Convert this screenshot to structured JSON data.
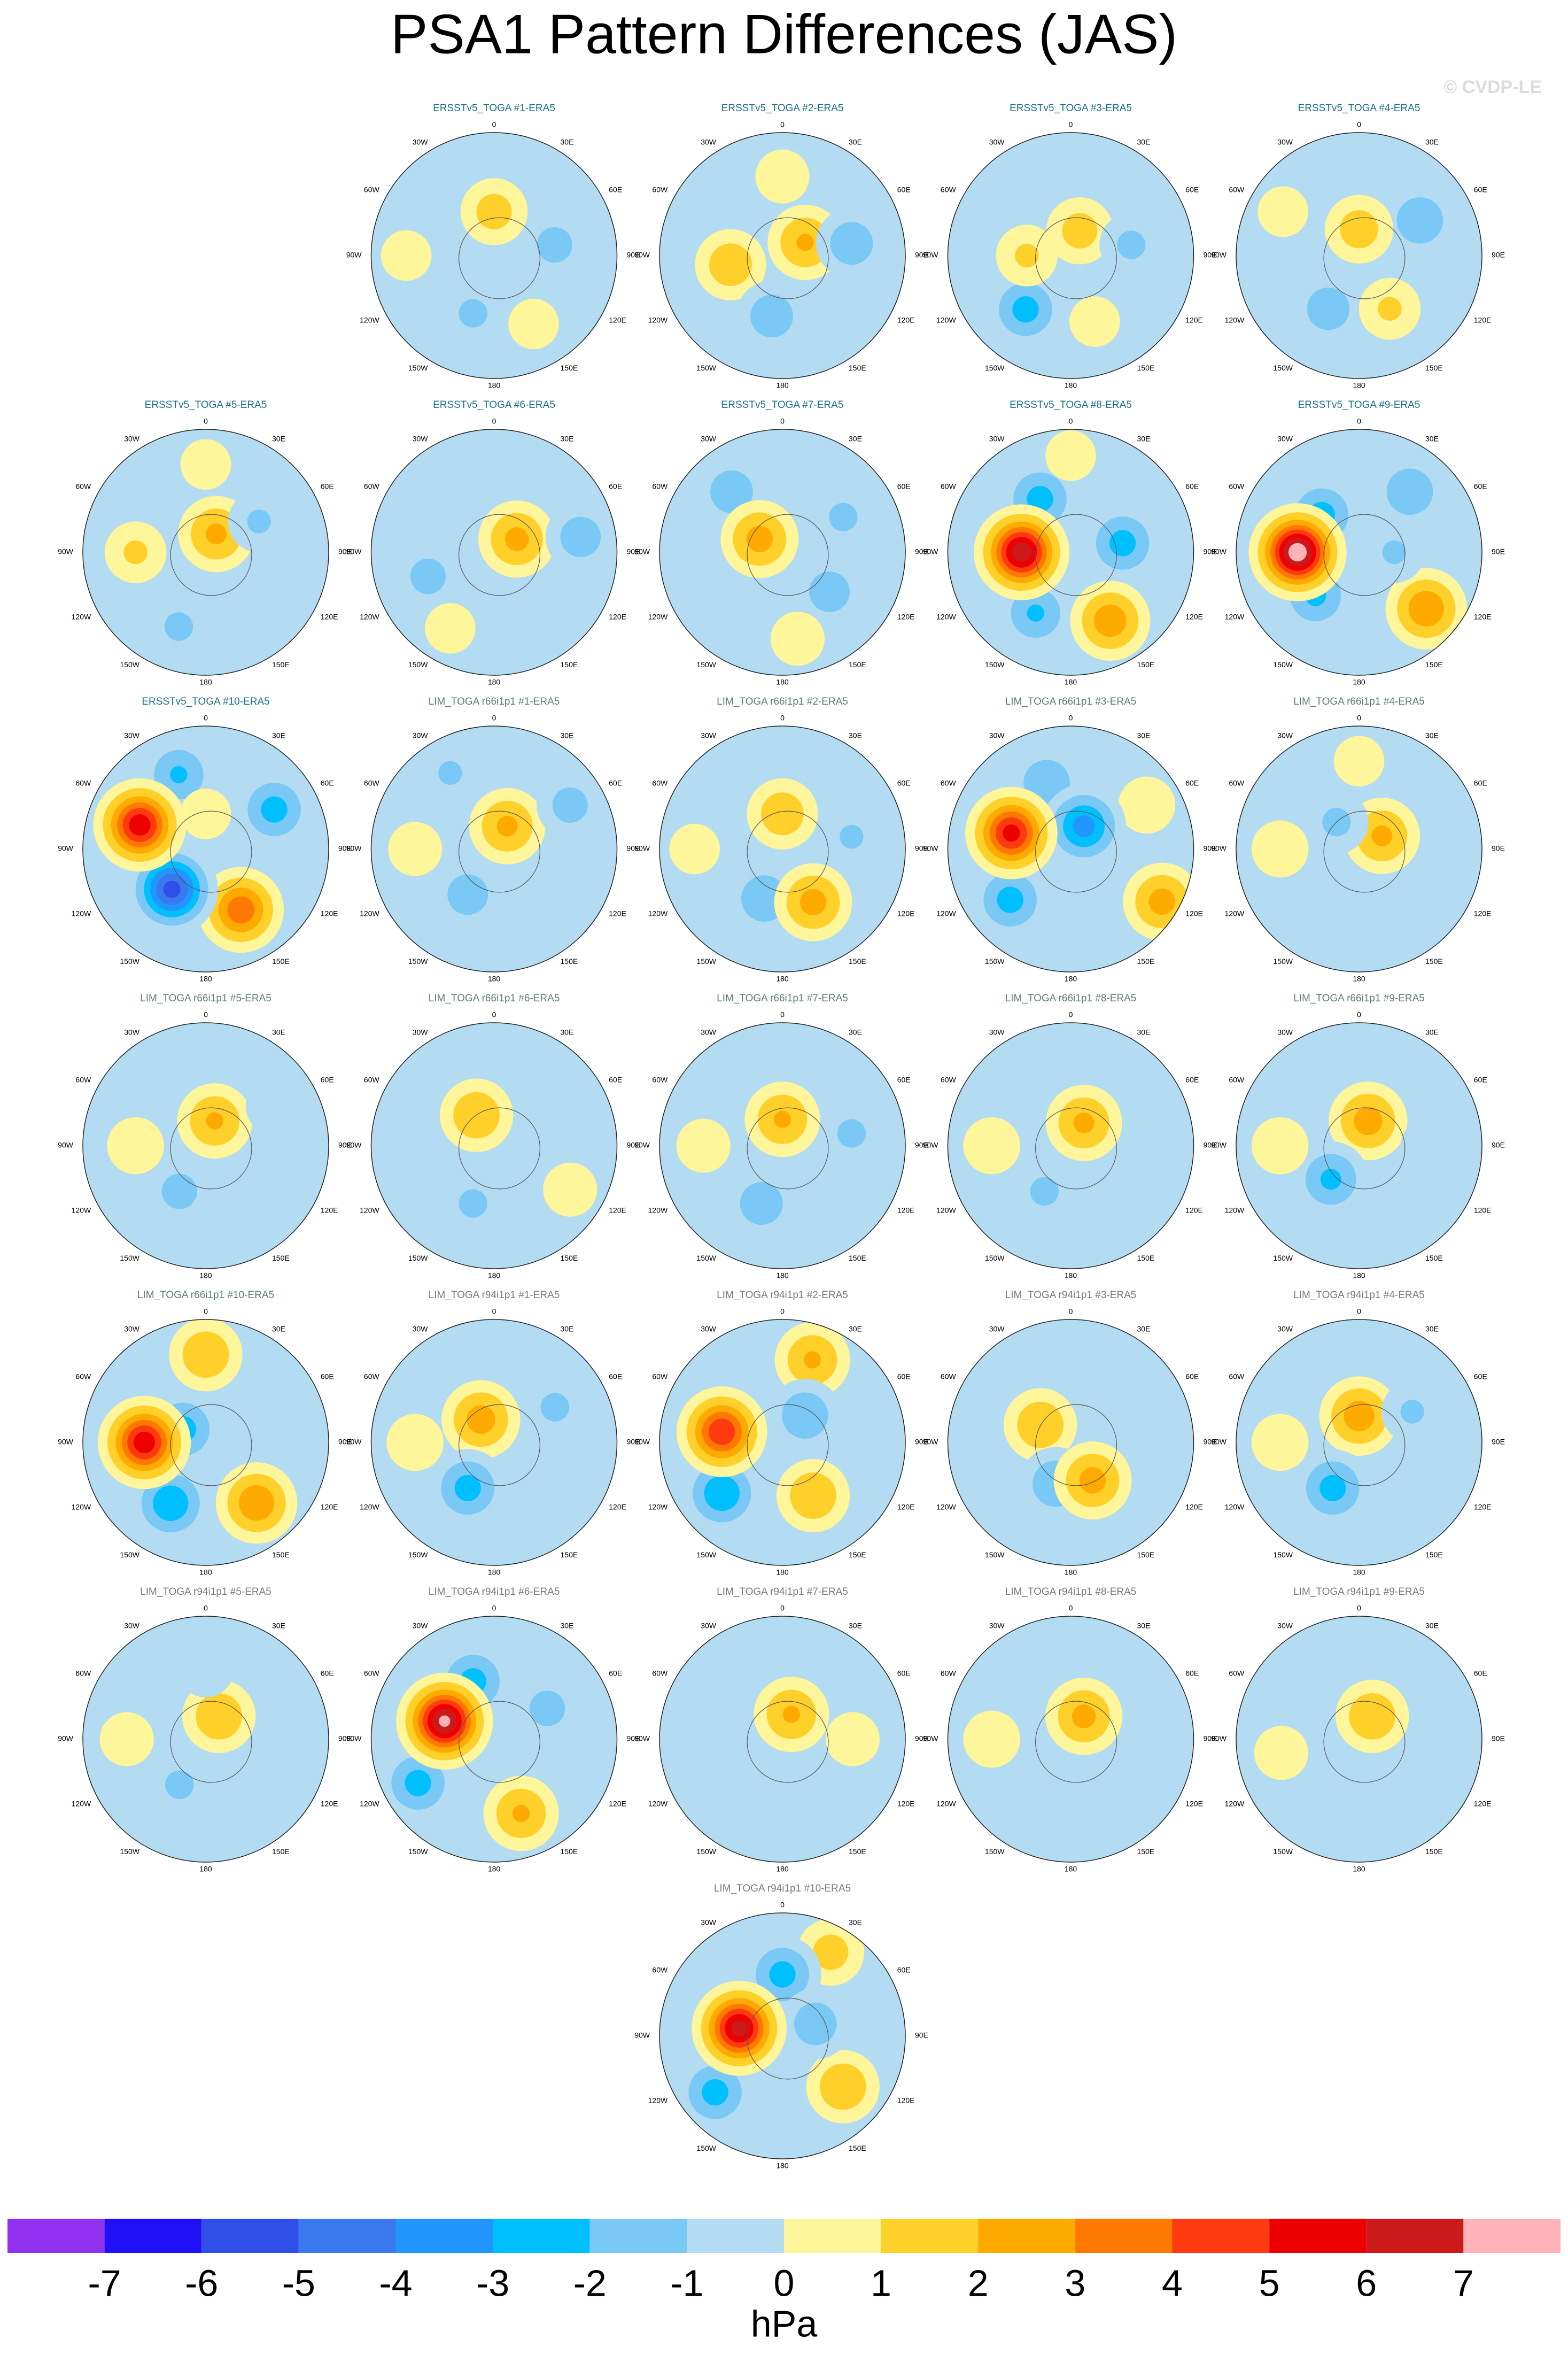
{
  "title": "PSA1 Pattern Differences (JAS)",
  "watermark": "© CVDP-LE",
  "lon_labels": [
    0,
    {
      "value": 30,
      "label": "30E"
    },
    {
      "value": 60,
      "label": "60E"
    },
    {
      "value": 90,
      "label": "90E"
    },
    {
      "value": 120,
      "label": "120E"
    },
    {
      "value": 150,
      "label": "150E"
    },
    180,
    {
      "value": -150,
      "label": "150W"
    },
    {
      "value": -120,
      "label": "120W"
    },
    {
      "value": -90,
      "label": "90W"
    },
    {
      "value": -60,
      "label": "60W"
    },
    {
      "value": -30,
      "label": "30W"
    }
  ],
  "colorbar": {
    "levels": [
      -7,
      -6,
      -5,
      -4,
      -3,
      -2,
      -1,
      0,
      1,
      2,
      3,
      4,
      5,
      6,
      7
    ],
    "colors": [
      "#9131f0",
      "#1f10f5",
      "#2f4fe8",
      "#3a78f0",
      "#2196ff",
      "#00bfff",
      "#7ac8f5",
      "#b3dcf2",
      "#fff59a",
      "#ffd02a",
      "#ffaa00",
      "#ff7800",
      "#ff3a10",
      "#ee0000",
      "#cc1a1a",
      "#ffb3b8"
    ],
    "unit": "hPa"
  },
  "panels": [
    {
      "title": "ERSSTv5_TOGA #1-ERA5",
      "title_color": "#1f6f8b",
      "features": [
        [
          0,
          -65,
          1.5
        ],
        [
          80,
          -55,
          -1.5
        ],
        [
          -160,
          -55,
          -1.3
        ],
        [
          -90,
          -40,
          0.8
        ],
        [
          150,
          -45,
          0.8
        ]
      ]
    },
    {
      "title": "ERSSTv5_TOGA #2-ERA5",
      "title_color": "#1f6f8b",
      "features": [
        [
          -100,
          -60,
          1.8
        ],
        [
          60,
          -75,
          2.2
        ],
        [
          80,
          -50,
          -1.8
        ],
        [
          -170,
          -55,
          -1.8
        ],
        [
          0,
          -45,
          0.9
        ]
      ]
    },
    {
      "title": "ERSSTv5_TOGA #3-ERA5",
      "title_color": "#1f6f8b",
      "features": [
        [
          -140,
          -50,
          -2.5
        ],
        [
          -90,
          -65,
          1.2
        ],
        [
          20,
          -75,
          1.5
        ],
        [
          80,
          -55,
          -1.3
        ],
        [
          160,
          -50,
          0.8
        ]
      ]
    },
    {
      "title": "ERSSTv5_TOGA #4-ERA5",
      "title_color": "#1f6f8b",
      "features": [
        [
          60,
          -50,
          -2.0
        ],
        [
          -150,
          -55,
          -1.8
        ],
        [
          0,
          -75,
          1.6
        ],
        [
          150,
          -55,
          1.2
        ],
        [
          -60,
          -40,
          0.8
        ]
      ]
    },
    {
      "title": "ERSSTv5_TOGA #5-ERA5",
      "title_color": "#1f6f8b",
      "features": [
        [
          30,
          -78,
          2.3
        ],
        [
          -90,
          -50,
          1.2
        ],
        [
          -160,
          -45,
          -1.3
        ],
        [
          60,
          -55,
          -1.2
        ],
        [
          0,
          -40,
          0.8
        ]
      ]
    },
    {
      "title": "ERSSTv5_TOGA #6-ERA5",
      "title_color": "#1f6f8b",
      "features": [
        [
          60,
          -75,
          2.4
        ],
        [
          -110,
          -50,
          -1.5
        ],
        [
          80,
          -40,
          -1.7
        ],
        [
          0,
          -45,
          -1.0
        ],
        [
          -150,
          -40,
          0.8
        ]
      ]
    },
    {
      "title": "ERSSTv5_TOGA #7-ERA5",
      "title_color": "#1f6f8b",
      "features": [
        [
          -40,
          -45,
          -1.8
        ],
        [
          -60,
          -75,
          2.5
        ],
        [
          130,
          -55,
          -1.7
        ],
        [
          60,
          -50,
          -1.3
        ],
        [
          170,
          -40,
          0.9
        ]
      ]
    },
    {
      "title": "ERSSTv5_TOGA #8-ERA5",
      "title_color": "#1f6f8b",
      "features": [
        [
          -30,
          -55,
          -2.5
        ],
        [
          -150,
          -50,
          -2.2
        ],
        [
          80,
          -60,
          -2.5
        ],
        [
          150,
          -45,
          2.8
        ],
        [
          0,
          -35,
          0.8
        ],
        [
          -90,
          -62,
          6.8
        ]
      ]
    },
    {
      "title": "ERSSTv5_TOGA #9-ERA5",
      "title_color": "#1f6f8b",
      "features": [
        [
          -45,
          -60,
          -2.5
        ],
        [
          -135,
          -55,
          -2.3
        ],
        [
          40,
          -45,
          -2.0
        ],
        [
          130,
          -40,
          3.0
        ],
        [
          90,
          -70,
          -1.2
        ],
        [
          -90,
          -55,
          7.8
        ]
      ]
    },
    {
      "title": "ERSSTv5_TOGA #10-ERA5",
      "title_color": "#1f6f8b",
      "features": [
        [
          -20,
          -45,
          -2.2
        ],
        [
          60,
          -45,
          -2.5
        ],
        [
          0,
          -70,
          0.8
        ],
        [
          150,
          -50,
          3.8
        ],
        [
          -140,
          -60,
          -5.5
        ],
        [
          -70,
          -50,
          5.8
        ]
      ]
    },
    {
      "title": "LIM_TOGA r66i1p1 #1-ERA5",
      "title_color": "#5f7f6a",
      "features": [
        [
          30,
          -75,
          2.3
        ],
        [
          -150,
          -60,
          -1.7
        ],
        [
          60,
          -40,
          -1.5
        ],
        [
          -30,
          -40,
          -1.2
        ],
        [
          -90,
          -45,
          0.9
        ]
      ]
    },
    {
      "title": "LIM_TOGA r66i1p1 #2-ERA5",
      "title_color": "#5f7f6a",
      "features": [
        [
          0,
          -70,
          1.8
        ],
        [
          -160,
          -60,
          -2.0
        ],
        [
          150,
          -55,
          2.5
        ],
        [
          80,
          -50,
          -1.2
        ],
        [
          -90,
          -40,
          0.8
        ]
      ]
    },
    {
      "title": "LIM_TOGA r66i1p1 #3-ERA5",
      "title_color": "#5f7f6a",
      "features": [
        [
          60,
          -40,
          1.0
        ],
        [
          120,
          -30,
          2.5
        ],
        [
          -20,
          -50,
          -2.0
        ],
        [
          -130,
          -45,
          -2.5
        ],
        [
          30,
          -75,
          -3.5
        ],
        [
          -75,
          -55,
          5.5
        ]
      ]
    },
    {
      "title": "LIM_TOGA r66i1p1 #4-ERA5",
      "title_color": "#5f7f6a",
      "features": [
        [
          60,
          -75,
          2.3
        ],
        [
          -40,
          -70,
          -1.3
        ],
        [
          -90,
          -45,
          1.0
        ],
        [
          -170,
          -45,
          -1.0
        ],
        [
          0,
          -40,
          0.8
        ]
      ]
    },
    {
      "title": "LIM_TOGA r66i1p1 #5-ERA5",
      "title_color": "#5f7f6a",
      "features": [
        [
          20,
          -75,
          2.2
        ],
        [
          -150,
          -60,
          -1.5
        ],
        [
          -90,
          -50,
          1.0
        ],
        [
          60,
          -45,
          -1.0
        ]
      ]
    },
    {
      "title": "LIM_TOGA r66i1p1 #6-ERA5",
      "title_color": "#5f7f6a",
      "features": [
        [
          -30,
          -70,
          2.0
        ],
        [
          -160,
          -55,
          -1.3
        ],
        [
          120,
          -40,
          0.9
        ],
        [
          60,
          -50,
          -1.0
        ]
      ]
    },
    {
      "title": "LIM_TOGA r66i1p1 #7-ERA5",
      "title_color": "#5f7f6a",
      "features": [
        [
          0,
          -75,
          2.2
        ],
        [
          -160,
          -55,
          -1.8
        ],
        [
          80,
          -50,
          -1.3
        ],
        [
          -90,
          -45,
          0.9
        ]
      ]
    },
    {
      "title": "LIM_TOGA r66i1p1 #8-ERA5",
      "title_color": "#5f7f6a",
      "features": [
        [
          30,
          -75,
          2.3
        ],
        [
          -150,
          -60,
          -1.3
        ],
        [
          -90,
          -45,
          1.0
        ],
        [
          0,
          -40,
          -1.0
        ]
      ]
    },
    {
      "title": "LIM_TOGA r66i1p1 #9-ERA5",
      "title_color": "#5f7f6a",
      "features": [
        [
          20,
          -75,
          2.6
        ],
        [
          -140,
          -65,
          -2.3
        ],
        [
          -90,
          -45,
          1.0
        ],
        [
          90,
          -50,
          -1.0
        ]
      ]
    },
    {
      "title": "LIM_TOGA r66i1p1 #10-ERA5",
      "title_color": "#5f7f6a",
      "features": [
        [
          0,
          -40,
          2.0
        ],
        [
          140,
          -45,
          3.0
        ],
        [
          -150,
          -50,
          -3.0
        ],
        [
          -60,
          -75,
          -2.5
        ],
        [
          -90,
          -55,
          5.8
        ]
      ]
    },
    {
      "title": "LIM_TOGA r94i1p1 #1-ERA5",
      "title_color": "#7a7a7a",
      "features": [
        [
          -30,
          -75,
          2.6
        ],
        [
          -150,
          -60,
          -2.5
        ],
        [
          60,
          -50,
          -1.3
        ],
        [
          -90,
          -45,
          1.0
        ]
      ]
    },
    {
      "title": "LIM_TOGA r94i1p1 #2-ERA5",
      "title_color": "#7a7a7a",
      "features": [
        [
          20,
          -40,
          2.2
        ],
        [
          150,
          -55,
          2.0
        ],
        [
          -130,
          -45,
          -3.0
        ],
        [
          40,
          -70,
          -2.0
        ],
        [
          -80,
          -55,
          5.0
        ]
      ]
    },
    {
      "title": "LIM_TOGA r94i1p1 #3-ERA5",
      "title_color": "#7a7a7a",
      "features": [
        [
          -60,
          -70,
          2.0
        ],
        [
          -160,
          -65,
          -2.0
        ],
        [
          150,
          -65,
          2.5
        ],
        [
          30,
          -55,
          -1.0
        ]
      ]
    },
    {
      "title": "LIM_TOGA r94i1p1 #4-ERA5",
      "title_color": "#7a7a7a",
      "features": [
        [
          0,
          -75,
          2.7
        ],
        [
          -150,
          -60,
          -2.5
        ],
        [
          60,
          -55,
          -1.2
        ],
        [
          -90,
          -45,
          1.0
        ]
      ]
    },
    {
      "title": "LIM_TOGA r94i1p1 #5-ERA5",
      "title_color": "#7a7a7a",
      "features": [
        [
          30,
          -75,
          2.0
        ],
        [
          -150,
          -60,
          -1.3
        ],
        [
          0,
          -50,
          -1.0
        ],
        [
          -90,
          -45,
          0.9
        ]
      ]
    },
    {
      "title": "LIM_TOGA r94i1p1 #6-ERA5",
      "title_color": "#7a7a7a",
      "features": [
        [
          -120,
          -40,
          -2.5
        ],
        [
          -20,
          -55,
          -2.5
        ],
        [
          60,
          -55,
          -1.5
        ],
        [
          160,
          -45,
          2.2
        ],
        [
          -70,
          -60,
          7.3
        ]
      ]
    },
    {
      "title": "LIM_TOGA r94i1p1 #7-ERA5",
      "title_color": "#7a7a7a",
      "features": [
        [
          20,
          -75,
          2.2
        ],
        [
          -160,
          -50,
          -1.0
        ],
        [
          90,
          -50,
          0.9
        ]
      ]
    },
    {
      "title": "LIM_TOGA r94i1p1 #8-ERA5",
      "title_color": "#7a7a7a",
      "features": [
        [
          30,
          -75,
          2.4
        ],
        [
          -170,
          -55,
          -1.0
        ],
        [
          -90,
          -45,
          1.0
        ]
      ]
    },
    {
      "title": "LIM_TOGA r94i1p1 #9-ERA5",
      "title_color": "#7a7a7a",
      "features": [
        [
          30,
          -75,
          2.0
        ],
        [
          -170,
          -50,
          -1.0
        ],
        [
          -100,
          -45,
          0.9
        ]
      ]
    },
    {
      "title": "LIM_TOGA r94i1p1 #10-ERA5",
      "title_color": "#7a7a7a",
      "features": [
        [
          30,
          -35,
          1.5
        ],
        [
          130,
          -45,
          2.0
        ],
        [
          -130,
          -40,
          -2.5
        ],
        [
          0,
          -55,
          -2.5
        ],
        [
          70,
          -70,
          -1.8
        ],
        [
          -80,
          -65,
          6.5
        ]
      ]
    }
  ]
}
